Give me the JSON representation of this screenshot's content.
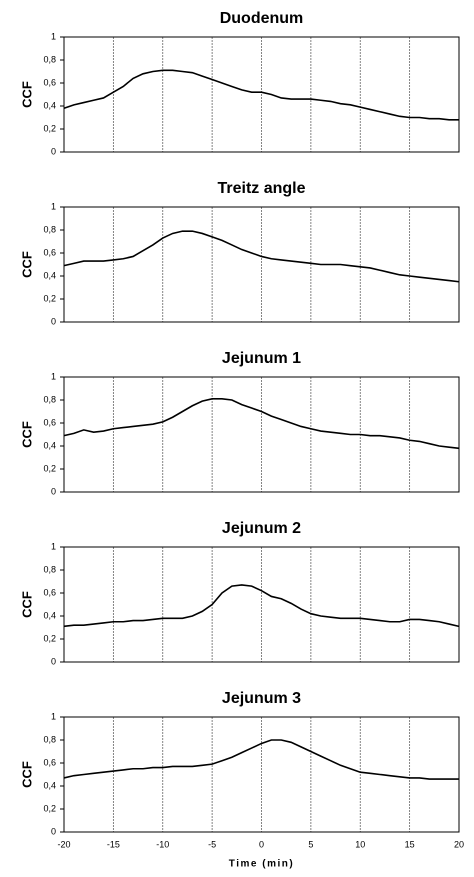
{
  "chart_data": [
    {
      "type": "line",
      "title": "Duodenum",
      "ylabel": "CCF",
      "xlim": [
        -20,
        20
      ],
      "xticks": [
        -20,
        -15,
        -10,
        -5,
        0,
        5,
        10,
        15,
        20
      ],
      "ylim": [
        0,
        1
      ],
      "yticks": [
        0,
        {
          "value": 0.2,
          "label": "0,2"
        },
        {
          "value": 0.4,
          "label": "0,4"
        },
        {
          "value": 0.6,
          "label": "0,6"
        },
        {
          "value": 0.8,
          "label": "0,8"
        },
        1
      ],
      "grid": true,
      "color": "#000000",
      "x": [
        -20,
        -19,
        -18,
        -17,
        -16,
        -15,
        -14,
        -13,
        -12,
        -11,
        -10,
        -9,
        -8,
        -7,
        -6,
        -5,
        -4,
        -3,
        -2,
        -1,
        0,
        1,
        2,
        3,
        4,
        5,
        6,
        7,
        8,
        9,
        10,
        11,
        12,
        13,
        14,
        15,
        16,
        17,
        18,
        19,
        20
      ],
      "values": [
        0.38,
        0.41,
        0.43,
        0.45,
        0.47,
        0.52,
        0.57,
        0.64,
        0.68,
        0.7,
        0.71,
        0.71,
        0.7,
        0.69,
        0.66,
        0.63,
        0.6,
        0.57,
        0.54,
        0.52,
        0.52,
        0.5,
        0.47,
        0.46,
        0.46,
        0.46,
        0.45,
        0.44,
        0.42,
        0.41,
        0.39,
        0.37,
        0.35,
        0.33,
        0.31,
        0.3,
        0.3,
        0.29,
        0.29,
        0.28,
        0.28
      ]
    },
    {
      "type": "line",
      "title": "Treitz angle",
      "ylabel": "CCF",
      "xlim": [
        -20,
        20
      ],
      "xticks": [
        -20,
        -15,
        -10,
        -5,
        0,
        5,
        10,
        15,
        20
      ],
      "ylim": [
        0,
        1
      ],
      "yticks": [
        0,
        {
          "value": 0.2,
          "label": "0,2"
        },
        {
          "value": 0.4,
          "label": "0,4"
        },
        {
          "value": 0.6,
          "label": "0,6"
        },
        {
          "value": 0.8,
          "label": "0,8"
        },
        1
      ],
      "grid": true,
      "color": "#000000",
      "x": [
        -20,
        -19,
        -18,
        -17,
        -16,
        -15,
        -14,
        -13,
        -12,
        -11,
        -10,
        -9,
        -8,
        -7,
        -6,
        -5,
        -4,
        -3,
        -2,
        -1,
        0,
        1,
        2,
        3,
        4,
        5,
        6,
        7,
        8,
        9,
        10,
        11,
        12,
        13,
        14,
        15,
        16,
        17,
        18,
        19,
        20
      ],
      "values": [
        0.49,
        0.51,
        0.53,
        0.53,
        0.53,
        0.54,
        0.55,
        0.57,
        0.62,
        0.67,
        0.73,
        0.77,
        0.79,
        0.79,
        0.77,
        0.74,
        0.71,
        0.67,
        0.63,
        0.6,
        0.57,
        0.55,
        0.54,
        0.53,
        0.52,
        0.51,
        0.5,
        0.5,
        0.5,
        0.49,
        0.48,
        0.47,
        0.45,
        0.43,
        0.41,
        0.4,
        0.39,
        0.38,
        0.37,
        0.36,
        0.35
      ]
    },
    {
      "type": "line",
      "title": "Jejunum 1",
      "ylabel": "CCF",
      "xlim": [
        -20,
        20
      ],
      "xticks": [
        -20,
        -15,
        -10,
        -5,
        0,
        5,
        10,
        15,
        20
      ],
      "ylim": [
        0,
        1
      ],
      "yticks": [
        0,
        {
          "value": 0.2,
          "label": "0,2"
        },
        {
          "value": 0.4,
          "label": "0,4"
        },
        {
          "value": 0.6,
          "label": "0,6"
        },
        {
          "value": 0.8,
          "label": "0,8"
        },
        1
      ],
      "grid": true,
      "color": "#000000",
      "x": [
        -20,
        -19,
        -18,
        -17,
        -16,
        -15,
        -14,
        -13,
        -12,
        -11,
        -10,
        -9,
        -8,
        -7,
        -6,
        -5,
        -4,
        -3,
        -2,
        -1,
        0,
        1,
        2,
        3,
        4,
        5,
        6,
        7,
        8,
        9,
        10,
        11,
        12,
        13,
        14,
        15,
        16,
        17,
        18,
        19,
        20
      ],
      "values": [
        0.49,
        0.51,
        0.54,
        0.52,
        0.53,
        0.55,
        0.56,
        0.57,
        0.58,
        0.59,
        0.61,
        0.65,
        0.7,
        0.75,
        0.79,
        0.81,
        0.81,
        0.8,
        0.76,
        0.73,
        0.7,
        0.66,
        0.63,
        0.6,
        0.57,
        0.55,
        0.53,
        0.52,
        0.51,
        0.5,
        0.5,
        0.49,
        0.49,
        0.48,
        0.47,
        0.45,
        0.44,
        0.42,
        0.4,
        0.39,
        0.38
      ]
    },
    {
      "type": "line",
      "title": "Jejunum 2",
      "ylabel": "CCF",
      "xlim": [
        -20,
        20
      ],
      "xticks": [
        -20,
        -15,
        -10,
        -5,
        0,
        5,
        10,
        15,
        20
      ],
      "ylim": [
        0,
        1
      ],
      "yticks": [
        0,
        {
          "value": 0.2,
          "label": "0,2"
        },
        {
          "value": 0.4,
          "label": "0,4"
        },
        {
          "value": 0.6,
          "label": "0,6"
        },
        {
          "value": 0.8,
          "label": "0,8"
        },
        1
      ],
      "grid": true,
      "color": "#000000",
      "x": [
        -20,
        -19,
        -18,
        -17,
        -16,
        -15,
        -14,
        -13,
        -12,
        -11,
        -10,
        -9,
        -8,
        -7,
        -6,
        -5,
        -4,
        -3,
        -2,
        -1,
        0,
        1,
        2,
        3,
        4,
        5,
        6,
        7,
        8,
        9,
        10,
        11,
        12,
        13,
        14,
        15,
        16,
        17,
        18,
        19,
        20
      ],
      "values": [
        0.31,
        0.32,
        0.32,
        0.33,
        0.34,
        0.35,
        0.35,
        0.36,
        0.36,
        0.37,
        0.38,
        0.38,
        0.38,
        0.4,
        0.44,
        0.5,
        0.6,
        0.66,
        0.67,
        0.66,
        0.62,
        0.57,
        0.55,
        0.51,
        0.46,
        0.42,
        0.4,
        0.39,
        0.38,
        0.38,
        0.38,
        0.37,
        0.36,
        0.35,
        0.35,
        0.37,
        0.37,
        0.36,
        0.35,
        0.33,
        0.31
      ]
    },
    {
      "type": "line",
      "title": "Jejunum 3",
      "ylabel": "CCF",
      "xlabel": "Time (min)",
      "xlim": [
        -20,
        20
      ],
      "xticks": [
        -20,
        -15,
        -10,
        -5,
        0,
        5,
        10,
        15,
        20
      ],
      "ylim": [
        0,
        1
      ],
      "yticks": [
        0,
        {
          "value": 0.2,
          "label": "0,2"
        },
        {
          "value": 0.4,
          "label": "0,4"
        },
        {
          "value": 0.6,
          "label": "0,6"
        },
        {
          "value": 0.8,
          "label": "0,8"
        },
        1
      ],
      "grid": true,
      "color": "#000000",
      "x": [
        -20,
        -19,
        -18,
        -17,
        -16,
        -15,
        -14,
        -13,
        -12,
        -11,
        -10,
        -9,
        -8,
        -7,
        -6,
        -5,
        -4,
        -3,
        -2,
        -1,
        0,
        1,
        2,
        3,
        4,
        5,
        6,
        7,
        8,
        9,
        10,
        11,
        12,
        13,
        14,
        15,
        16,
        17,
        18,
        19,
        20
      ],
      "values": [
        0.47,
        0.49,
        0.5,
        0.51,
        0.52,
        0.53,
        0.54,
        0.55,
        0.55,
        0.56,
        0.56,
        0.57,
        0.57,
        0.57,
        0.58,
        0.59,
        0.62,
        0.65,
        0.69,
        0.73,
        0.77,
        0.8,
        0.8,
        0.78,
        0.74,
        0.7,
        0.66,
        0.62,
        0.58,
        0.55,
        0.52,
        0.51,
        0.5,
        0.49,
        0.48,
        0.47,
        0.47,
        0.46,
        0.46,
        0.46,
        0.46
      ]
    }
  ]
}
